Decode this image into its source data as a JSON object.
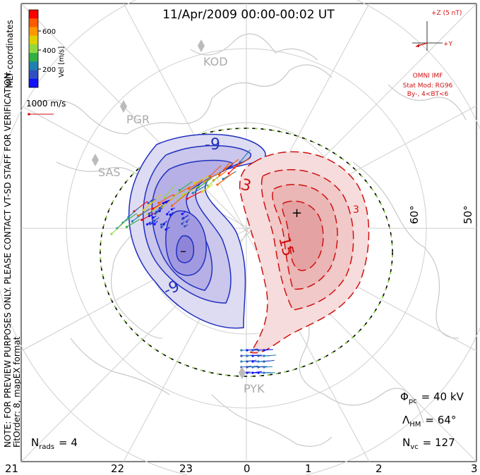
{
  "header": {
    "title": "11/Apr/2009 00:00-00:02 UT"
  },
  "colorbar": {
    "label": "Vel [m/s]",
    "coords": "MLT coordinates",
    "ticks": [
      "600",
      "400",
      "200"
    ],
    "colors": [
      "#ff0000",
      "#ff5a00",
      "#ff9800",
      "#e0d000",
      "#90d840",
      "#30b040",
      "#2080b0",
      "#3050c0",
      "#1010ff"
    ]
  },
  "scale": {
    "label": "1000 m/s"
  },
  "imf": {
    "z_label": "+Z (5 nT)",
    "y_label": "+Y",
    "source": "OMNI IMF",
    "model": "Stat Mod: RG96",
    "condition": "By-, 4<BT<6"
  },
  "radars": [
    "KOD",
    "PGR",
    "SAS",
    "PYK"
  ],
  "latitudes": [
    "60°",
    "50°"
  ],
  "mlt_ticks": [
    "21",
    "22",
    "23",
    "0",
    "1",
    "2",
    "3"
  ],
  "contour_labels": {
    "neg1": "-9",
    "neg2": "-9",
    "pos1": "3",
    "pos2": "15",
    "pos3": "3",
    "min": "–",
    "max": "+"
  },
  "side_note": {
    "line1": "NOTE: FOR PREVIEW PURPOSES ONLY. PLEASE CONTACT VT-SD STAFF FOR VERIFICATION.",
    "line2": "FitOrder: 8, mapEX format"
  },
  "stats": {
    "nrads_label": "N",
    "nrads_sub": "rads",
    "nrads_value": "= 4",
    "phi_label": "Φ",
    "phi_sub": "pc",
    "phi_value": "= 40 kV",
    "lambda_label": "Λ",
    "lambda_sub": "HM",
    "lambda_value": "= 64°",
    "nvc_label": "N",
    "nvc_sub": "vc",
    "nvc_value": "= 127"
  },
  "chart_data": {
    "type": "polar-convection-map",
    "cross_polar_cap_potential_kV": 40,
    "heppner_maynard_boundary_lat_deg": 64,
    "n_radars": 4,
    "n_vectors": 127,
    "contour_levels_kV": [
      -9,
      -3,
      3,
      9,
      15
    ],
    "mlt_axis": [
      21,
      22,
      23,
      0,
      1,
      2,
      3
    ],
    "latitude_rings_deg": [
      60,
      50
    ]
  }
}
